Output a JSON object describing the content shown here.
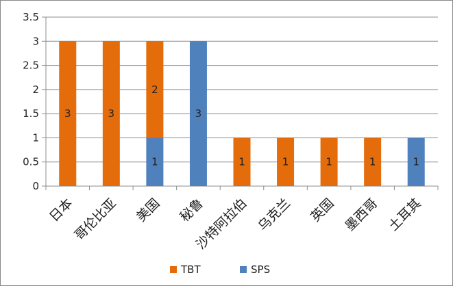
{
  "chart_data": {
    "type": "bar",
    "stacked": true,
    "title": "",
    "xlabel": "",
    "ylabel": "",
    "ylim": [
      0,
      3.5
    ],
    "yticks": [
      "0",
      "0.5",
      "1",
      "1.5",
      "2",
      "2.5",
      "3",
      "3.5"
    ],
    "grid": true,
    "legend_position": "bottom",
    "categories": [
      "日本",
      "哥伦比亚",
      "美国",
      "秘鲁",
      "沙特阿拉伯",
      "乌克兰",
      "英国",
      "墨西哥",
      "土耳其"
    ],
    "series": [
      {
        "name": "SPS",
        "color": "#4f81bd",
        "values": [
          0,
          0,
          1,
          3,
          0,
          0,
          0,
          0,
          1
        ]
      },
      {
        "name": "TBT",
        "color": "#e46c0a",
        "values": [
          3,
          3,
          2,
          0,
          1,
          1,
          1,
          1,
          0
        ]
      }
    ],
    "legend_order": [
      "TBT",
      "SPS"
    ]
  }
}
